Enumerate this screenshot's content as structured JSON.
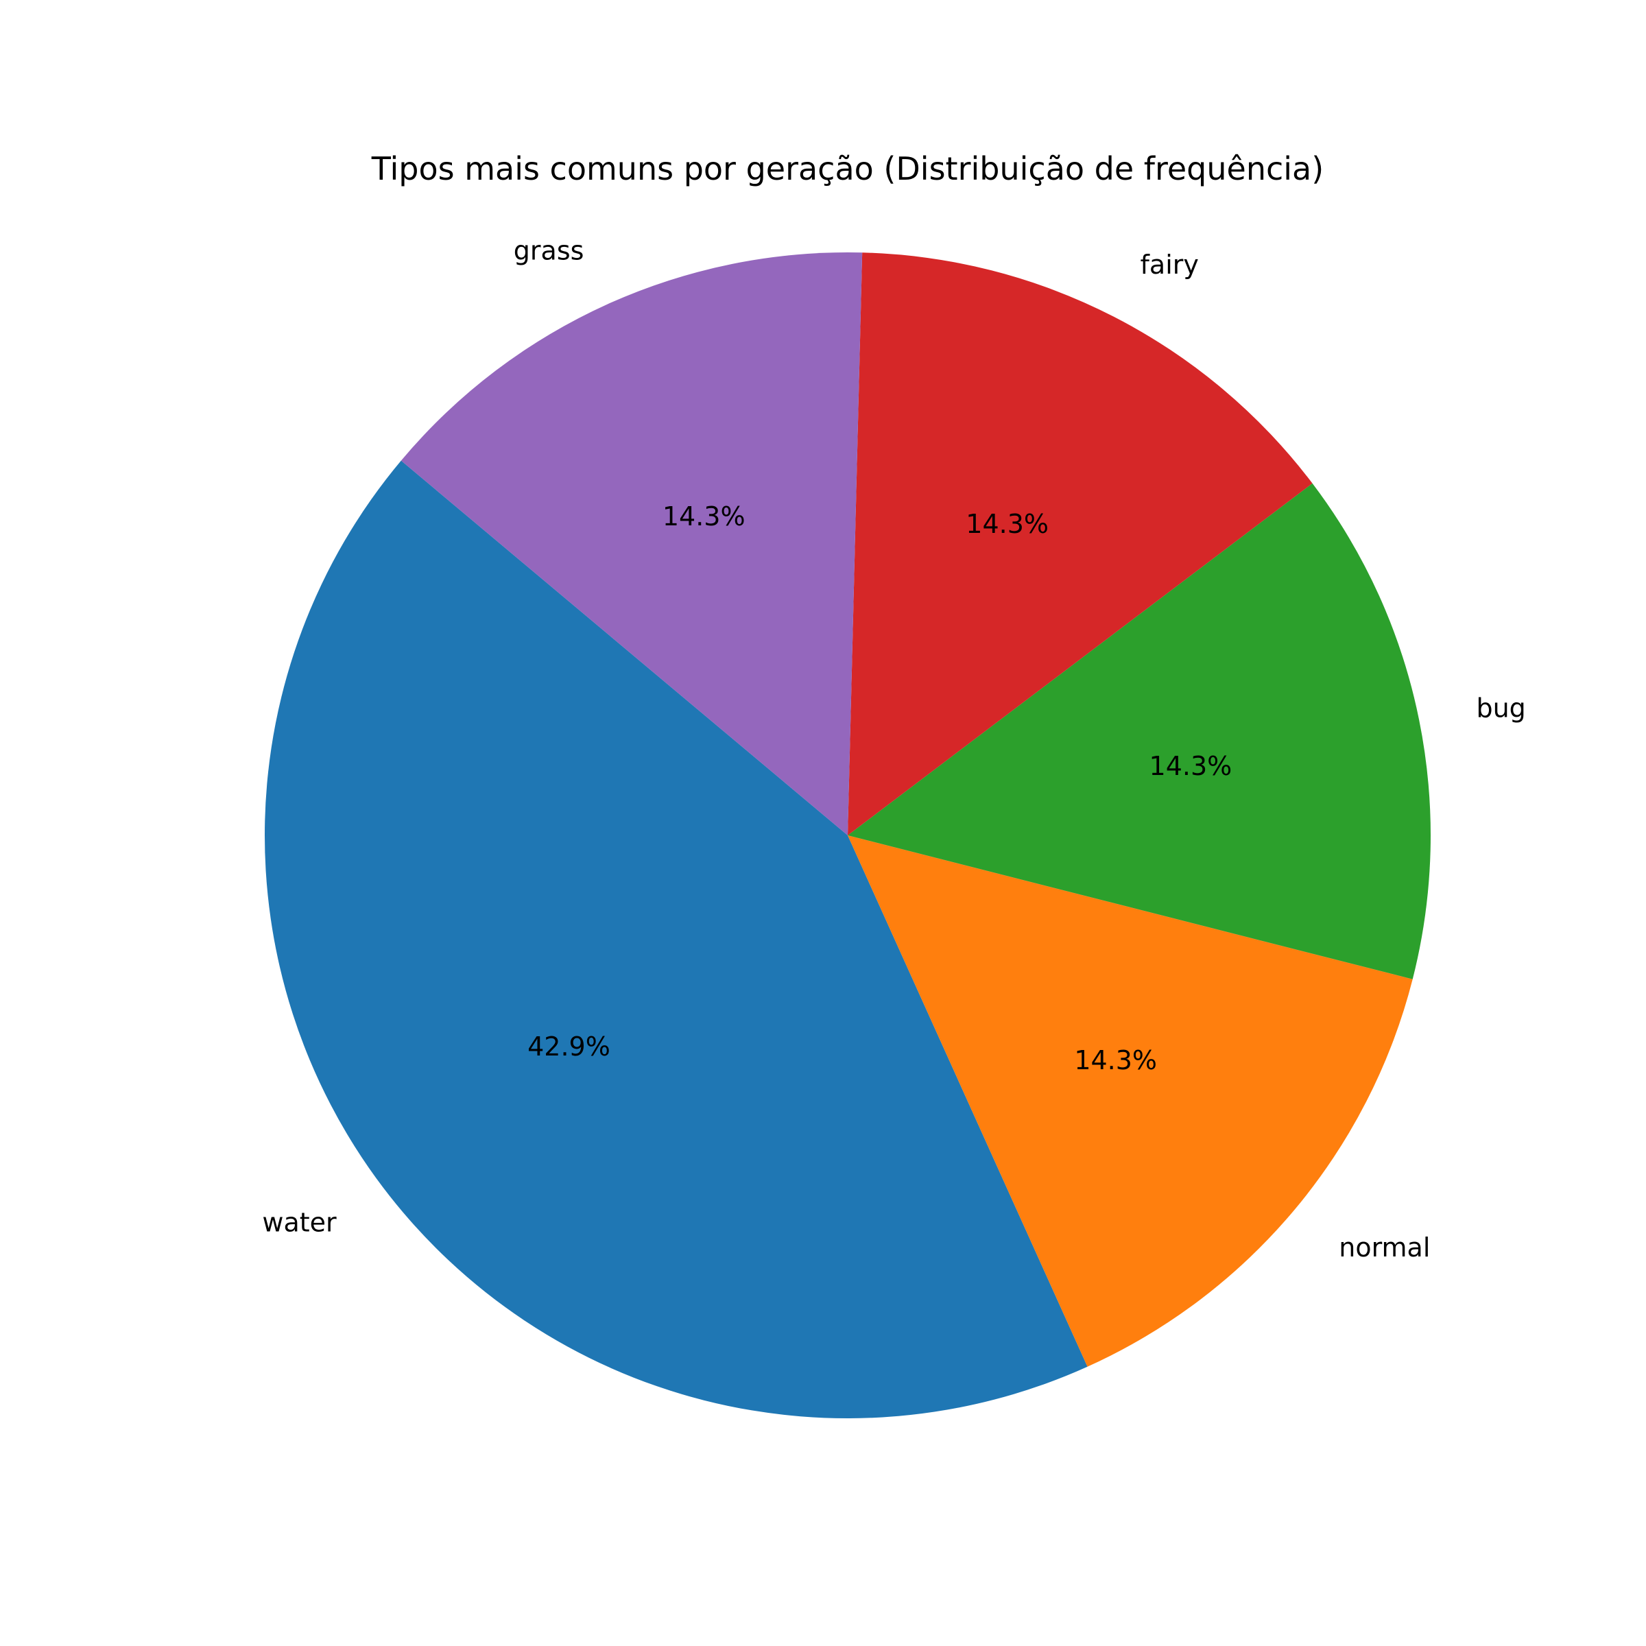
{
  "chart_data": {
    "type": "pie",
    "title": "Tipos mais comuns por geração (Distribuição de frequência)",
    "categories": [
      "water",
      "normal",
      "bug",
      "fairy",
      "grass"
    ],
    "values": [
      3,
      1,
      1,
      1,
      1
    ],
    "percent_labels": [
      "42.9%",
      "14.3%",
      "14.3%",
      "14.3%",
      "14.3%"
    ],
    "colors": [
      "#1f77b4",
      "#ff7f0e",
      "#2ca02c",
      "#d62728",
      "#9467bd"
    ],
    "start_angle_deg": 140,
    "direction": "counterclockwise"
  }
}
